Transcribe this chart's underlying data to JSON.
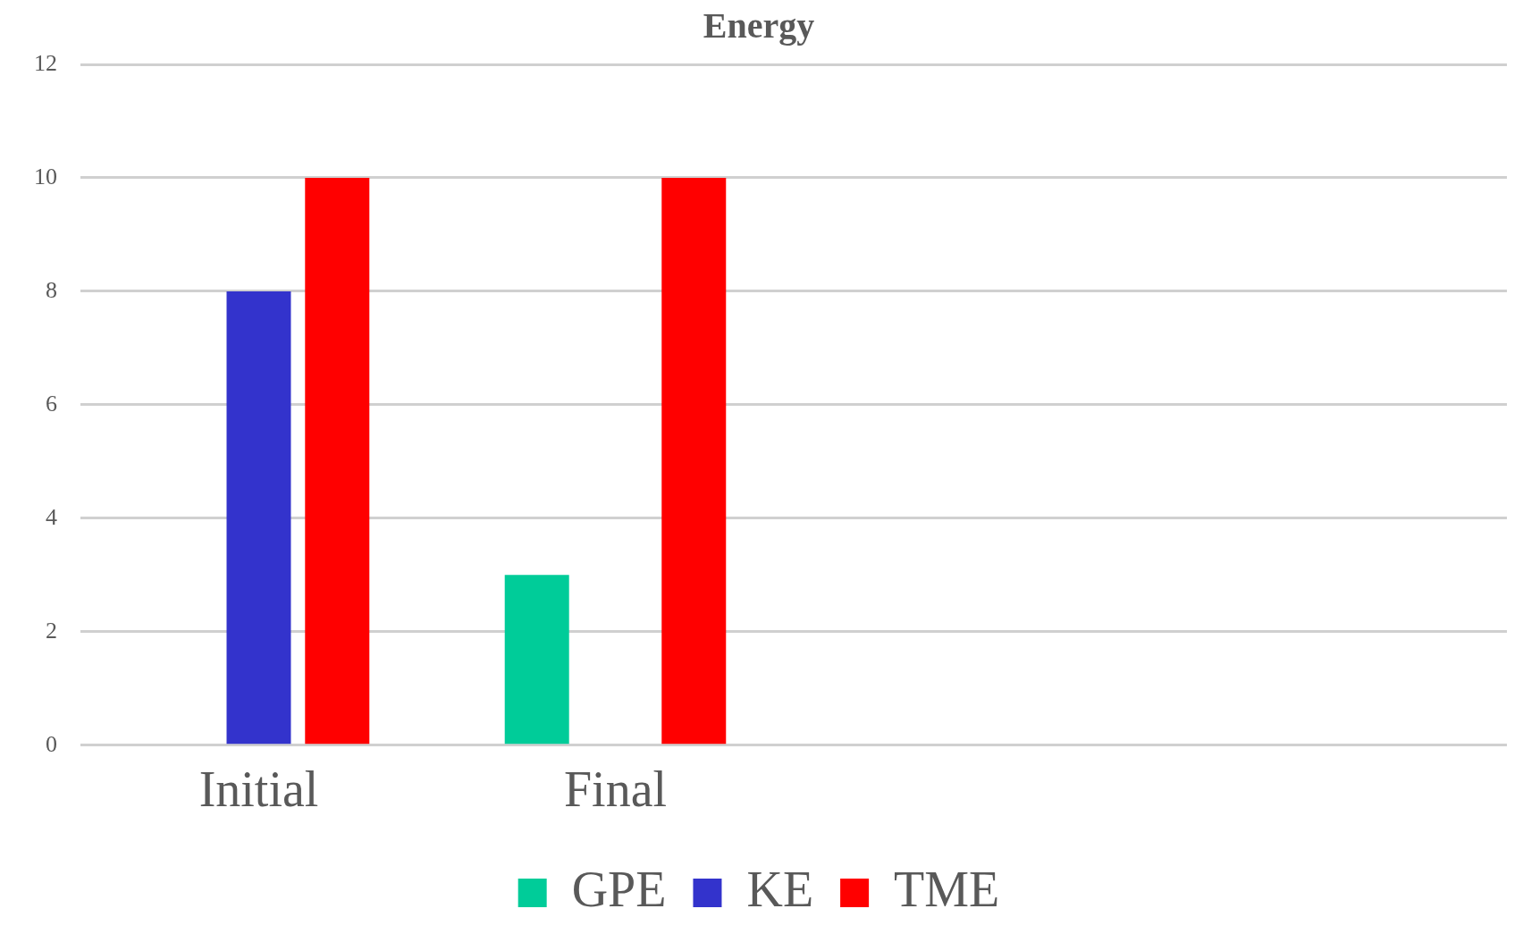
{
  "chart_data": {
    "type": "bar",
    "title": "Energy",
    "categories": [
      "Initial",
      "Final",
      null,
      null
    ],
    "series": [
      {
        "name": "GPE",
        "color": "#00cc99",
        "values": [
          0,
          3,
          null,
          null
        ]
      },
      {
        "name": "KE",
        "color": "#3333cc",
        "values": [
          8,
          0,
          null,
          null
        ]
      },
      {
        "name": "TME",
        "color": "#ff0000",
        "values": [
          10,
          10,
          null,
          null
        ]
      }
    ],
    "ylim": [
      0,
      12
    ],
    "yticks": [
      0,
      2,
      4,
      6,
      8,
      10,
      12
    ],
    "grid": "y",
    "legend": "bottom"
  }
}
